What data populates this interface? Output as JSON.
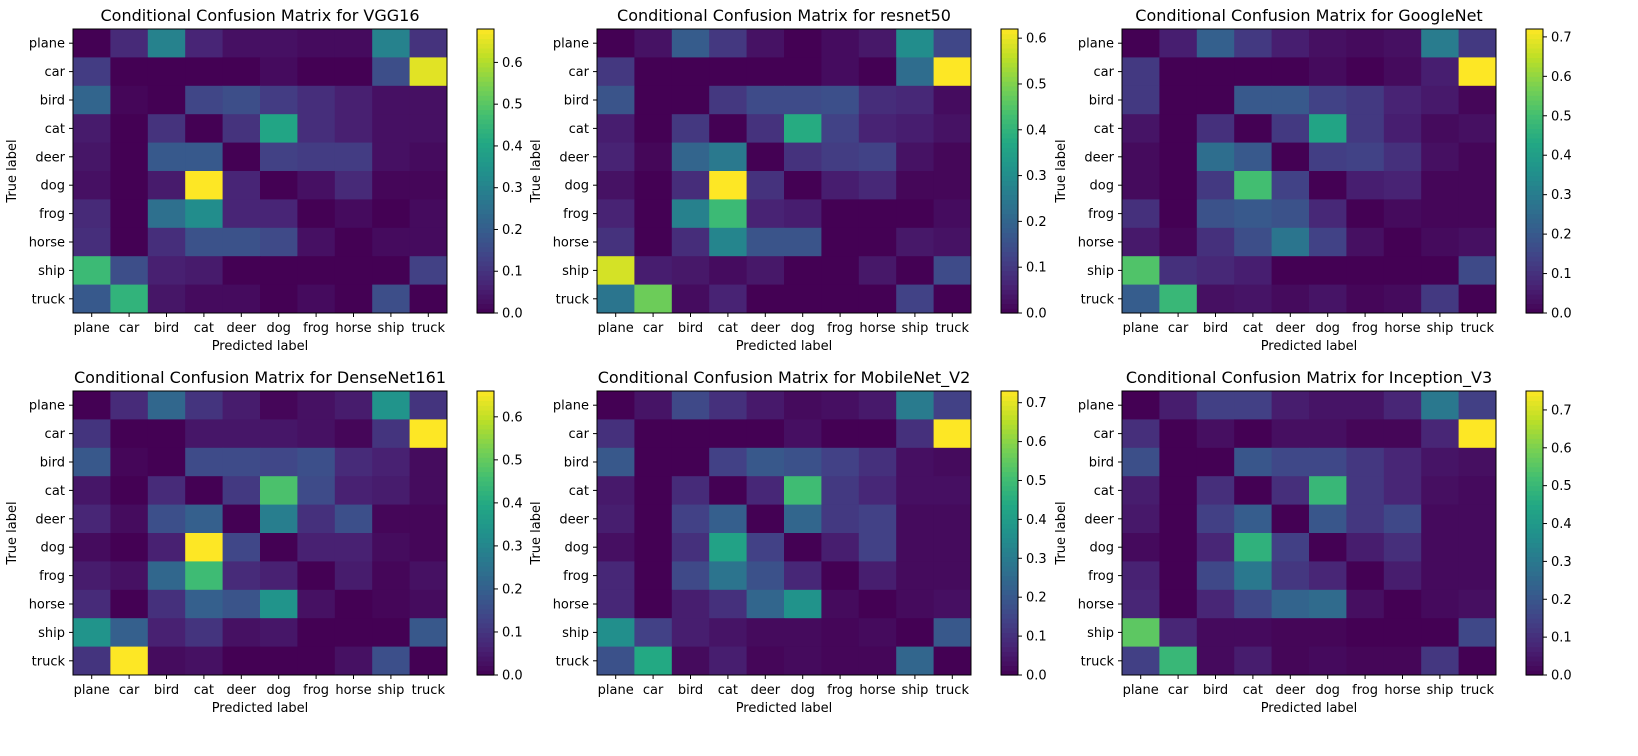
{
  "figure": {
    "xlabel": "Predicted label",
    "ylabel": "True label"
  },
  "chart_data": [
    {
      "type": "heatmap",
      "title": "Conditional Confusion Matrix for VGG16",
      "xlabel": "Predicted label",
      "ylabel": "True label",
      "categories": [
        "plane",
        "car",
        "bird",
        "cat",
        "deer",
        "dog",
        "frog",
        "horse",
        "ship",
        "truck"
      ],
      "colorbar": {
        "min": 0,
        "max": 0.68,
        "ticks": [
          "0.0",
          "0.1",
          "0.2",
          "0.3",
          "0.4",
          "0.5",
          "0.6"
        ]
      },
      "matrix": [
        [
          0.0,
          0.08,
          0.3,
          0.07,
          0.03,
          0.03,
          0.02,
          0.02,
          0.3,
          0.1
        ],
        [
          0.12,
          0.0,
          0.0,
          0.0,
          0.0,
          0.02,
          0.0,
          0.0,
          0.16,
          0.65
        ],
        [
          0.22,
          0.01,
          0.0,
          0.14,
          0.16,
          0.12,
          0.09,
          0.06,
          0.03,
          0.03
        ],
        [
          0.05,
          0.0,
          0.1,
          0.0,
          0.1,
          0.4,
          0.09,
          0.06,
          0.03,
          0.03
        ],
        [
          0.04,
          0.0,
          0.19,
          0.19,
          0.0,
          0.13,
          0.12,
          0.12,
          0.03,
          0.02
        ],
        [
          0.03,
          0.0,
          0.05,
          0.68,
          0.07,
          0.0,
          0.03,
          0.08,
          0.01,
          0.01
        ],
        [
          0.08,
          0.0,
          0.25,
          0.33,
          0.07,
          0.07,
          0.0,
          0.02,
          0.0,
          0.02
        ],
        [
          0.09,
          0.0,
          0.09,
          0.17,
          0.17,
          0.15,
          0.03,
          0.0,
          0.02,
          0.02
        ],
        [
          0.46,
          0.16,
          0.06,
          0.05,
          0.0,
          0.0,
          0.0,
          0.0,
          0.0,
          0.13
        ],
        [
          0.19,
          0.44,
          0.04,
          0.02,
          0.02,
          0.0,
          0.02,
          0.0,
          0.16,
          0.0
        ]
      ]
    },
    {
      "type": "heatmap",
      "title": "Conditional Confusion Matrix for resnet50",
      "xlabel": "Predicted label",
      "ylabel": "True label",
      "categories": [
        "plane",
        "car",
        "bird",
        "cat",
        "deer",
        "dog",
        "frog",
        "horse",
        "ship",
        "truck"
      ],
      "colorbar": {
        "min": 0,
        "max": 0.62,
        "ticks": [
          "0.0",
          "0.1",
          "0.2",
          "0.3",
          "0.4",
          "0.5",
          "0.6"
        ]
      },
      "matrix": [
        [
          0.0,
          0.03,
          0.18,
          0.1,
          0.03,
          0.0,
          0.02,
          0.04,
          0.3,
          0.13
        ],
        [
          0.1,
          0.0,
          0.0,
          0.0,
          0.0,
          0.0,
          0.02,
          0.0,
          0.22,
          0.62
        ],
        [
          0.16,
          0.0,
          0.0,
          0.1,
          0.14,
          0.14,
          0.15,
          0.08,
          0.07,
          0.02
        ],
        [
          0.05,
          0.0,
          0.1,
          0.0,
          0.09,
          0.38,
          0.12,
          0.06,
          0.05,
          0.03
        ],
        [
          0.06,
          0.01,
          0.2,
          0.25,
          0.0,
          0.09,
          0.11,
          0.12,
          0.03,
          0.01
        ],
        [
          0.03,
          0.0,
          0.08,
          0.62,
          0.09,
          0.0,
          0.05,
          0.07,
          0.01,
          0.01
        ],
        [
          0.06,
          0.0,
          0.27,
          0.42,
          0.06,
          0.05,
          0.0,
          0.0,
          0.0,
          0.02
        ],
        [
          0.09,
          0.0,
          0.08,
          0.28,
          0.16,
          0.16,
          0.0,
          0.0,
          0.04,
          0.03
        ],
        [
          0.58,
          0.05,
          0.04,
          0.02,
          0.04,
          0.0,
          0.0,
          0.04,
          0.0,
          0.14
        ],
        [
          0.24,
          0.48,
          0.02,
          0.06,
          0.0,
          0.0,
          0.0,
          0.0,
          0.12,
          0.0
        ]
      ]
    },
    {
      "type": "heatmap",
      "title": "Conditional Confusion Matrix for GoogleNet",
      "xlabel": "Predicted label",
      "ylabel": "True label",
      "categories": [
        "plane",
        "car",
        "bird",
        "cat",
        "deer",
        "dog",
        "frog",
        "horse",
        "ship",
        "truck"
      ],
      "colorbar": {
        "min": 0,
        "max": 0.72,
        "ticks": [
          "0.0",
          "0.1",
          "0.2",
          "0.3",
          "0.4",
          "0.5",
          "0.6",
          "0.7"
        ]
      },
      "matrix": [
        [
          0.0,
          0.06,
          0.22,
          0.12,
          0.06,
          0.03,
          0.02,
          0.03,
          0.3,
          0.12
        ],
        [
          0.12,
          0.0,
          0.0,
          0.0,
          0.0,
          0.02,
          0.0,
          0.02,
          0.06,
          0.72
        ],
        [
          0.12,
          0.0,
          0.0,
          0.2,
          0.2,
          0.14,
          0.12,
          0.07,
          0.05,
          0.01
        ],
        [
          0.04,
          0.0,
          0.1,
          0.0,
          0.12,
          0.42,
          0.12,
          0.06,
          0.02,
          0.03
        ],
        [
          0.02,
          0.0,
          0.26,
          0.2,
          0.0,
          0.13,
          0.14,
          0.1,
          0.03,
          0.01
        ],
        [
          0.02,
          0.0,
          0.12,
          0.5,
          0.14,
          0.0,
          0.06,
          0.07,
          0.01,
          0.01
        ],
        [
          0.1,
          0.0,
          0.18,
          0.2,
          0.18,
          0.08,
          0.0,
          0.02,
          0.01,
          0.01
        ],
        [
          0.05,
          0.01,
          0.1,
          0.17,
          0.28,
          0.14,
          0.03,
          0.0,
          0.02,
          0.03
        ],
        [
          0.52,
          0.1,
          0.08,
          0.06,
          0.0,
          0.0,
          0.0,
          0.0,
          0.0,
          0.16
        ],
        [
          0.21,
          0.48,
          0.03,
          0.04,
          0.02,
          0.04,
          0.01,
          0.02,
          0.12,
          0.0
        ]
      ]
    },
    {
      "type": "heatmap",
      "title": "Conditional Confusion Matrix for DenseNet161",
      "xlabel": "Predicted label",
      "ylabel": "True label",
      "categories": [
        "plane",
        "car",
        "bird",
        "cat",
        "deer",
        "dog",
        "frog",
        "horse",
        "ship",
        "truck"
      ],
      "colorbar": {
        "min": 0,
        "max": 0.66,
        "ticks": [
          "0.0",
          "0.1",
          "0.2",
          "0.3",
          "0.4",
          "0.5",
          "0.6"
        ]
      },
      "matrix": [
        [
          0.0,
          0.08,
          0.22,
          0.1,
          0.05,
          0.01,
          0.03,
          0.05,
          0.34,
          0.1
        ],
        [
          0.1,
          0.0,
          0.0,
          0.04,
          0.04,
          0.04,
          0.03,
          0.01,
          0.1,
          0.66
        ],
        [
          0.18,
          0.01,
          0.0,
          0.15,
          0.15,
          0.14,
          0.16,
          0.08,
          0.06,
          0.02
        ],
        [
          0.04,
          0.0,
          0.08,
          0.0,
          0.11,
          0.47,
          0.15,
          0.06,
          0.05,
          0.02
        ],
        [
          0.07,
          0.02,
          0.16,
          0.2,
          0.0,
          0.28,
          0.09,
          0.16,
          0.01,
          0.01
        ],
        [
          0.02,
          0.0,
          0.06,
          0.66,
          0.14,
          0.0,
          0.06,
          0.06,
          0.02,
          0.01
        ],
        [
          0.05,
          0.03,
          0.22,
          0.45,
          0.08,
          0.06,
          0.0,
          0.05,
          0.01,
          0.03
        ],
        [
          0.08,
          0.0,
          0.09,
          0.2,
          0.17,
          0.34,
          0.03,
          0.0,
          0.01,
          0.02
        ],
        [
          0.34,
          0.2,
          0.06,
          0.1,
          0.03,
          0.04,
          0.0,
          0.0,
          0.0,
          0.18
        ],
        [
          0.1,
          0.66,
          0.02,
          0.03,
          0.0,
          0.0,
          0.0,
          0.03,
          0.16,
          0.0
        ]
      ]
    },
    {
      "type": "heatmap",
      "title": "Conditional Confusion Matrix for MobileNet_V2",
      "xlabel": "Predicted label",
      "ylabel": "True label",
      "categories": [
        "plane",
        "car",
        "bird",
        "cat",
        "deer",
        "dog",
        "frog",
        "horse",
        "ship",
        "truck"
      ],
      "colorbar": {
        "min": 0,
        "max": 0.73,
        "ticks": [
          "0.0",
          "0.1",
          "0.2",
          "0.3",
          "0.4",
          "0.5",
          "0.6",
          "0.7"
        ]
      },
      "matrix": [
        [
          0.0,
          0.04,
          0.16,
          0.1,
          0.05,
          0.02,
          0.03,
          0.05,
          0.3,
          0.14
        ],
        [
          0.1,
          0.0,
          0.0,
          0.0,
          0.0,
          0.03,
          0.0,
          0.0,
          0.1,
          0.73
        ],
        [
          0.2,
          0.0,
          0.0,
          0.14,
          0.2,
          0.18,
          0.14,
          0.1,
          0.03,
          0.02
        ],
        [
          0.05,
          0.0,
          0.09,
          0.0,
          0.08,
          0.5,
          0.12,
          0.08,
          0.03,
          0.03
        ],
        [
          0.06,
          0.0,
          0.14,
          0.22,
          0.0,
          0.24,
          0.12,
          0.14,
          0.02,
          0.02
        ],
        [
          0.03,
          0.0,
          0.1,
          0.42,
          0.14,
          0.0,
          0.06,
          0.14,
          0.02,
          0.02
        ],
        [
          0.08,
          0.0,
          0.16,
          0.28,
          0.18,
          0.08,
          0.0,
          0.06,
          0.02,
          0.02
        ],
        [
          0.08,
          0.0,
          0.06,
          0.1,
          0.24,
          0.37,
          0.02,
          0.0,
          0.02,
          0.03
        ],
        [
          0.36,
          0.14,
          0.06,
          0.04,
          0.02,
          0.02,
          0.01,
          0.02,
          0.0,
          0.2
        ],
        [
          0.18,
          0.44,
          0.02,
          0.06,
          0.01,
          0.02,
          0.01,
          0.01,
          0.24,
          0.0
        ]
      ]
    },
    {
      "type": "heatmap",
      "title": "Conditional Confusion Matrix for Inception_V3",
      "xlabel": "Predicted label",
      "ylabel": "True label",
      "categories": [
        "plane",
        "car",
        "bird",
        "cat",
        "deer",
        "dog",
        "frog",
        "horse",
        "ship",
        "truck"
      ],
      "colorbar": {
        "min": 0,
        "max": 0.75,
        "ticks": [
          "0.0",
          "0.1",
          "0.2",
          "0.3",
          "0.4",
          "0.5",
          "0.6",
          "0.7"
        ]
      },
      "matrix": [
        [
          0.0,
          0.06,
          0.14,
          0.14,
          0.06,
          0.04,
          0.04,
          0.08,
          0.3,
          0.14
        ],
        [
          0.1,
          0.0,
          0.03,
          0.0,
          0.03,
          0.03,
          0.01,
          0.01,
          0.08,
          0.75
        ],
        [
          0.18,
          0.0,
          0.0,
          0.2,
          0.16,
          0.16,
          0.12,
          0.08,
          0.04,
          0.03
        ],
        [
          0.06,
          0.0,
          0.1,
          0.0,
          0.1,
          0.5,
          0.12,
          0.08,
          0.03,
          0.02
        ],
        [
          0.05,
          0.0,
          0.14,
          0.22,
          0.0,
          0.2,
          0.12,
          0.16,
          0.02,
          0.02
        ],
        [
          0.02,
          0.0,
          0.08,
          0.48,
          0.14,
          0.0,
          0.06,
          0.1,
          0.02,
          0.02
        ],
        [
          0.07,
          0.0,
          0.16,
          0.3,
          0.12,
          0.08,
          0.0,
          0.06,
          0.02,
          0.02
        ],
        [
          0.08,
          0.0,
          0.08,
          0.16,
          0.24,
          0.26,
          0.03,
          0.0,
          0.02,
          0.03
        ],
        [
          0.56,
          0.08,
          0.02,
          0.02,
          0.01,
          0.01,
          0.0,
          0.0,
          0.0,
          0.16
        ],
        [
          0.14,
          0.5,
          0.02,
          0.06,
          0.01,
          0.02,
          0.01,
          0.01,
          0.12,
          0.0
        ]
      ]
    }
  ]
}
